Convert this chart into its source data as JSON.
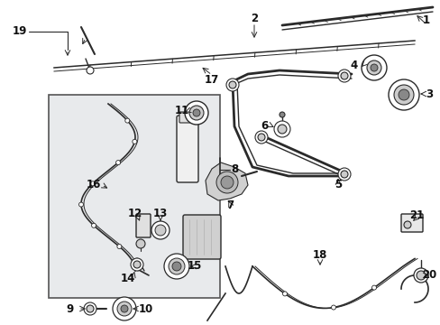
{
  "bg_color": "#ffffff",
  "fig_width": 4.89,
  "fig_height": 3.6,
  "dpi": 100,
  "line_color": "#2a2a2a",
  "box_bg": "#e8eaec",
  "box_edge": "#555555"
}
